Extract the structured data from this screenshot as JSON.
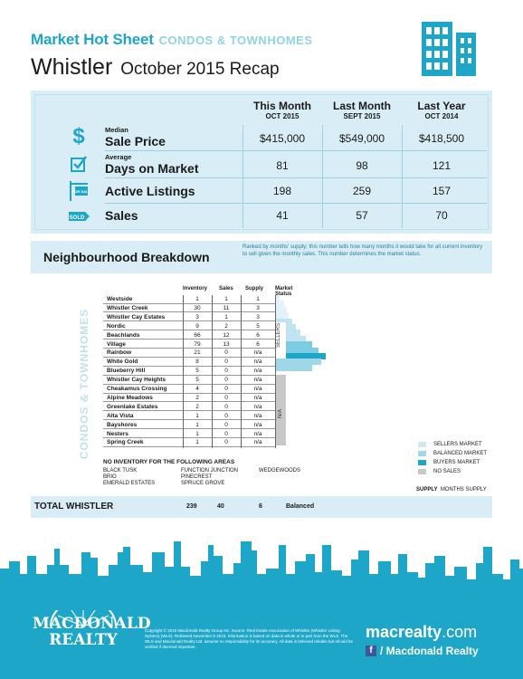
{
  "header": {
    "brand": "Market Hot Sheet",
    "category": "CONDOS & TOWNHOMES",
    "city": "Whistler",
    "period": "October 2015 Recap"
  },
  "summary": {
    "columns": [
      {
        "title": "This Month",
        "sub": "OCT 2015"
      },
      {
        "title": "Last Month",
        "sub": "SEPT 2015"
      },
      {
        "title": "Last Year",
        "sub": "OCT 2014"
      }
    ],
    "rows": [
      {
        "small": "Median",
        "label": "Sale Price",
        "icon": "dollar-icon",
        "values": [
          "$415,000",
          "$549,000",
          "$418,500"
        ]
      },
      {
        "small": "Average",
        "label": "Days on Market",
        "icon": "checkbox-icon",
        "values": [
          "81",
          "98",
          "121"
        ]
      },
      {
        "small": "",
        "label": "Active Listings",
        "icon": "for-sale-sign-icon",
        "values": [
          "198",
          "259",
          "157"
        ]
      },
      {
        "small": "",
        "label": "Sales",
        "icon": "sold-tag-icon",
        "values": [
          "41",
          "57",
          "70"
        ]
      }
    ]
  },
  "neighbourhood": {
    "title": "Neighbourhood Breakdown",
    "description": "Ranked by months' supply; this number tells how many months it would take for all current inventory to sell given the monthly sales. This number determines the market status.",
    "vertical_label": "CONDOS & TOWNHOMES",
    "headers": [
      "Inventory",
      "Sales",
      "Supply",
      "Market Status"
    ],
    "rows": [
      {
        "name": "Westside",
        "inventory": "1",
        "sales": "1",
        "supply": "1"
      },
      {
        "name": "Whistler Creek",
        "inventory": "30",
        "sales": "11",
        "supply": "3"
      },
      {
        "name": "Whistler Cay Estates",
        "inventory": "3",
        "sales": "1",
        "supply": "3"
      },
      {
        "name": "Nordic",
        "inventory": "9",
        "sales": "2",
        "supply": "5"
      },
      {
        "name": "Beachlands",
        "inventory": "66",
        "sales": "12",
        "supply": "6"
      },
      {
        "name": "Village",
        "inventory": "79",
        "sales": "13",
        "supply": "6"
      },
      {
        "name": "Rainbow",
        "inventory": "21",
        "sales": "0",
        "supply": "n/a"
      },
      {
        "name": "White Gold",
        "inventory": "8",
        "sales": "0",
        "supply": "n/a"
      },
      {
        "name": "Blueberry Hill",
        "inventory": "5",
        "sales": "0",
        "supply": "n/a"
      },
      {
        "name": "Whistler Cay Heights",
        "inventory": "5",
        "sales": "0",
        "supply": "n/a"
      },
      {
        "name": "Cheakamus Crossing",
        "inventory": "4",
        "sales": "0",
        "supply": "n/a"
      },
      {
        "name": "Alpine Meadows",
        "inventory": "2",
        "sales": "0",
        "supply": "n/a"
      },
      {
        "name": "Greenlake Estates",
        "inventory": "2",
        "sales": "0",
        "supply": "n/a"
      },
      {
        "name": "Alta Vista",
        "inventory": "1",
        "sales": "0",
        "supply": "n/a"
      },
      {
        "name": "Bayshores",
        "inventory": "1",
        "sales": "0",
        "supply": "n/a"
      },
      {
        "name": "Nesters",
        "inventory": "1",
        "sales": "0",
        "supply": "n/a"
      },
      {
        "name": "Spring Creek",
        "inventory": "1",
        "sales": "0",
        "supply": "n/a"
      }
    ],
    "status_labels": [
      "SELLERS",
      "N/A"
    ],
    "bar_levels": [
      0.06,
      0.14,
      0.18,
      0.22,
      0.28,
      0.34,
      0.42,
      0.52,
      0.62,
      0.74,
      0.86,
      0.78,
      0.62
    ]
  },
  "legend": {
    "items": [
      {
        "label": "SELLERS MARKET",
        "color": "#cfe9f2"
      },
      {
        "label": "BALANCED MARKET",
        "color": "#9fd6e8"
      },
      {
        "label": "BUYERS MARKET",
        "color": "#1da6c8"
      },
      {
        "label": "NO SALES",
        "color": "#c8c8c8"
      }
    ],
    "footer_left": "SUPPLY",
    "footer_right": "MONTHS SUPPLY"
  },
  "no_inventory": {
    "title": "NO INVENTORY FOR THE FOLLOWING AREAS",
    "areas": [
      "BLACK TUSK",
      "FUNCTION JUNCTION",
      "WEDGEWOODS",
      "BRIO",
      "PINECREST",
      "",
      "EMERALD ESTATES",
      "SPRUCE GROVE",
      ""
    ]
  },
  "total": {
    "label": "TOTAL WHISTLER",
    "inventory": "239",
    "sales": "40",
    "supply": "6",
    "status": "Balanced"
  },
  "footer": {
    "logo_line1": "MACDONALD",
    "logo_line2": "REALTY",
    "fine_print": "Copyright © 2015 Macdonald Realty Group Inc. Source: Real Estate Association of Whistler (Whistler Listing System) (WLS). Retrieved November 5 2015. Information is based on data in whole or in part from the WLS. The WLS and Macdonald Realty Ltd. assume no responsibility for its accuracy. All data is believed reliable but should be verified if deemed important.",
    "url_bold": "macrealty",
    "url_rest": ".com",
    "social": "/ Macdonald Realty",
    "colors": {
      "accent": "#1da6c8",
      "panel": "#d8edf5"
    }
  }
}
